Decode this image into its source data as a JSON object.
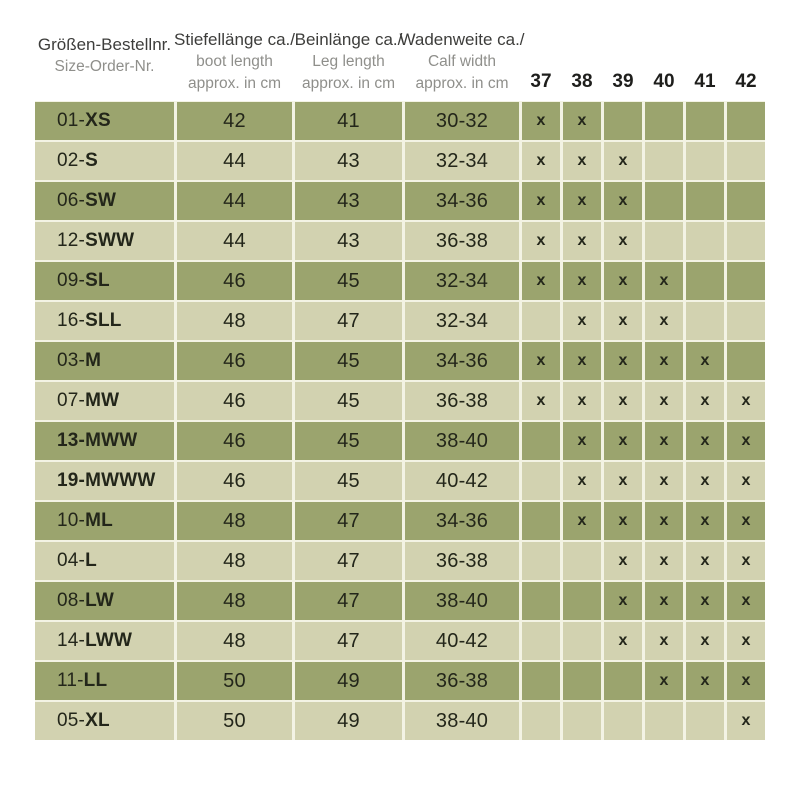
{
  "colors": {
    "row_dark": "#9ba46e",
    "row_light": "#d2d2b0",
    "gap_tint": "#f3f3e4",
    "text_dark": "#23261a",
    "header_de": "#3d3d3b",
    "header_en": "#8f8f8b",
    "size_header": "#1e1e1c"
  },
  "chart_data": {
    "type": "table",
    "columns": {
      "order": {
        "de": "Größen-Bestellnr.",
        "en": "Size-Order-Nr."
      },
      "boot": {
        "de": "Stiefellänge ca./",
        "en": [
          "boot length",
          "approx. in cm"
        ]
      },
      "leg": {
        "de": "Beinlänge ca./",
        "en": [
          "Leg length",
          "approx. in cm"
        ]
      },
      "calf": {
        "de": "Wadenweite ca./",
        "en": [
          "Calf width",
          "approx. in cm"
        ]
      },
      "sizes": [
        "37",
        "38",
        "39",
        "40",
        "41",
        "42"
      ]
    },
    "order_separator": " - ",
    "mark_symbol": "x",
    "rows": [
      {
        "order_no": "01",
        "code": "XS",
        "all_bold": false,
        "boot": "42",
        "leg": "41",
        "calf": "30-32",
        "sizes": [
          true,
          true,
          false,
          false,
          false,
          false
        ]
      },
      {
        "order_no": "02",
        "code": "S",
        "all_bold": false,
        "boot": "44",
        "leg": "43",
        "calf": "32-34",
        "sizes": [
          true,
          true,
          true,
          false,
          false,
          false
        ]
      },
      {
        "order_no": "06",
        "code": "SW",
        "all_bold": false,
        "boot": "44",
        "leg": "43",
        "calf": "34-36",
        "sizes": [
          true,
          true,
          true,
          false,
          false,
          false
        ]
      },
      {
        "order_no": "12",
        "code": "SWW",
        "all_bold": false,
        "boot": "44",
        "leg": "43",
        "calf": "36-38",
        "sizes": [
          true,
          true,
          true,
          false,
          false,
          false
        ]
      },
      {
        "order_no": "09",
        "code": "SL",
        "all_bold": false,
        "boot": "46",
        "leg": "45",
        "calf": "32-34",
        "sizes": [
          true,
          true,
          true,
          true,
          false,
          false
        ]
      },
      {
        "order_no": "16",
        "code": "SLL",
        "all_bold": false,
        "boot": "48",
        "leg": "47",
        "calf": "32-34",
        "sizes": [
          false,
          true,
          true,
          true,
          false,
          false
        ]
      },
      {
        "order_no": "03",
        "code": "M",
        "all_bold": false,
        "boot": "46",
        "leg": "45",
        "calf": "34-36",
        "sizes": [
          true,
          true,
          true,
          true,
          true,
          false
        ]
      },
      {
        "order_no": "07",
        "code": "MW",
        "all_bold": false,
        "boot": "46",
        "leg": "45",
        "calf": "36-38",
        "sizes": [
          true,
          true,
          true,
          true,
          true,
          true
        ]
      },
      {
        "order_no": "13",
        "code": "MWW",
        "all_bold": true,
        "boot": "46",
        "leg": "45",
        "calf": "38-40",
        "sizes": [
          false,
          true,
          true,
          true,
          true,
          true
        ]
      },
      {
        "order_no": "19",
        "code": "MWWW",
        "all_bold": true,
        "boot": "46",
        "leg": "45",
        "calf": "40-42",
        "sizes": [
          false,
          true,
          true,
          true,
          true,
          true
        ]
      },
      {
        "order_no": "10",
        "code": "ML",
        "all_bold": false,
        "boot": "48",
        "leg": "47",
        "calf": "34-36",
        "sizes": [
          false,
          true,
          true,
          true,
          true,
          true
        ]
      },
      {
        "order_no": "04",
        "code": "L",
        "all_bold": false,
        "boot": "48",
        "leg": "47",
        "calf": "36-38",
        "sizes": [
          false,
          false,
          true,
          true,
          true,
          true
        ]
      },
      {
        "order_no": "08",
        "code": "LW",
        "all_bold": false,
        "boot": "48",
        "leg": "47",
        "calf": "38-40",
        "sizes": [
          false,
          false,
          true,
          true,
          true,
          true
        ]
      },
      {
        "order_no": "14",
        "code": "LWW",
        "all_bold": false,
        "boot": "48",
        "leg": "47",
        "calf": "40-42",
        "sizes": [
          false,
          false,
          true,
          true,
          true,
          true
        ]
      },
      {
        "order_no": "11",
        "code": "LL",
        "all_bold": false,
        "boot": "50",
        "leg": "49",
        "calf": "36-38",
        "sizes": [
          false,
          false,
          false,
          true,
          true,
          true
        ]
      },
      {
        "order_no": "05",
        "code": "XL",
        "all_bold": false,
        "boot": "50",
        "leg": "49",
        "calf": "38-40",
        "sizes": [
          false,
          false,
          false,
          false,
          false,
          true
        ]
      }
    ]
  }
}
